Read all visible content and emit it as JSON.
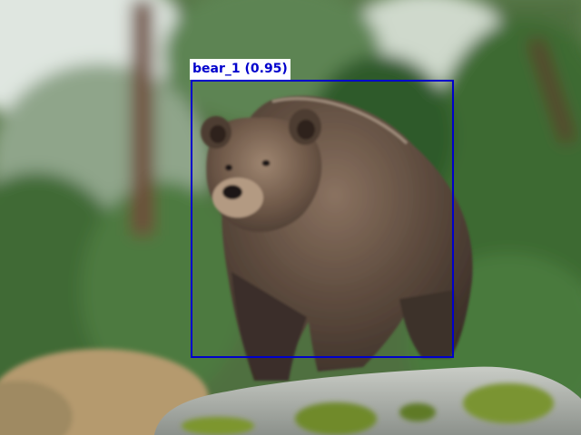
{
  "detection": {
    "label": "bear_1 (0.95)",
    "class": "bear",
    "confidence": 0.95,
    "box_color": "#0000cc"
  }
}
